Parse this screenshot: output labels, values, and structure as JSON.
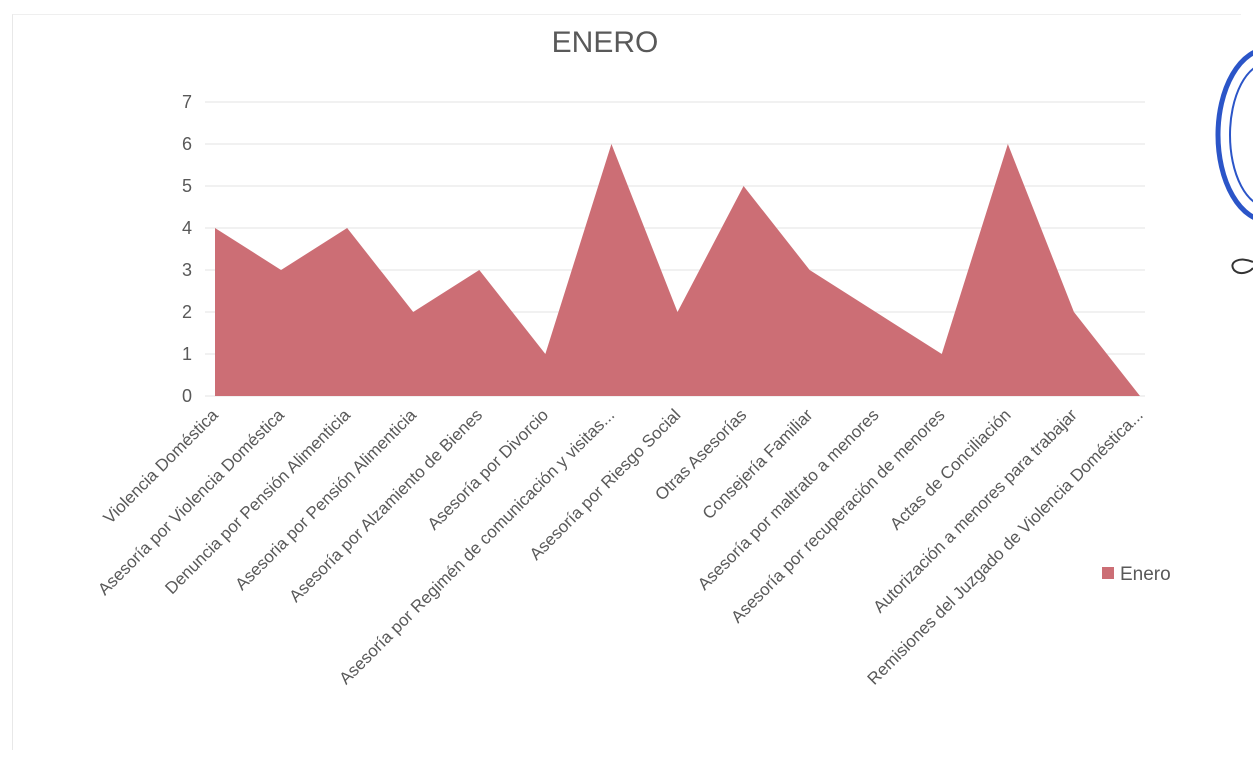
{
  "chart_data": {
    "type": "area",
    "title": "ENERO",
    "xlabel": "",
    "ylabel": "",
    "ylim": [
      0,
      7
    ],
    "yticks": [
      0,
      1,
      2,
      3,
      4,
      5,
      6,
      7
    ],
    "grid": true,
    "legend_position": "right",
    "categories": [
      "Violencia Doméstica",
      "Asesoría por Violencia Doméstica",
      "Denuncia por Pensión Alimenticia",
      "Asesoria por Pensión Alimenticia",
      "Asesoría por Alzamiento de Bienes",
      "Asesoría por Divorcio",
      "Asesoría por Regimén de comunicación y visitas...",
      "Asesoría por Riesgo Social",
      "Otras Asesorías",
      "Consejería Familiar",
      "Asesoría por maltrato a menores",
      "Asesoría por recuperación de menores",
      "Actas de Conciliación",
      "Autorización a menores para trabajar",
      "Remisiones del Juzgado de Violencia Doméstica..."
    ],
    "series": [
      {
        "name": "Enero",
        "color": "#cc6e75",
        "values": [
          4,
          3,
          4,
          2,
          3,
          1,
          6,
          2,
          5,
          3,
          2,
          1,
          6,
          2,
          0
        ]
      }
    ]
  },
  "colors": {
    "area": "#cc6e75",
    "grid": "#e3e3e3",
    "text": "#595959",
    "seal": "#2b55c8"
  }
}
